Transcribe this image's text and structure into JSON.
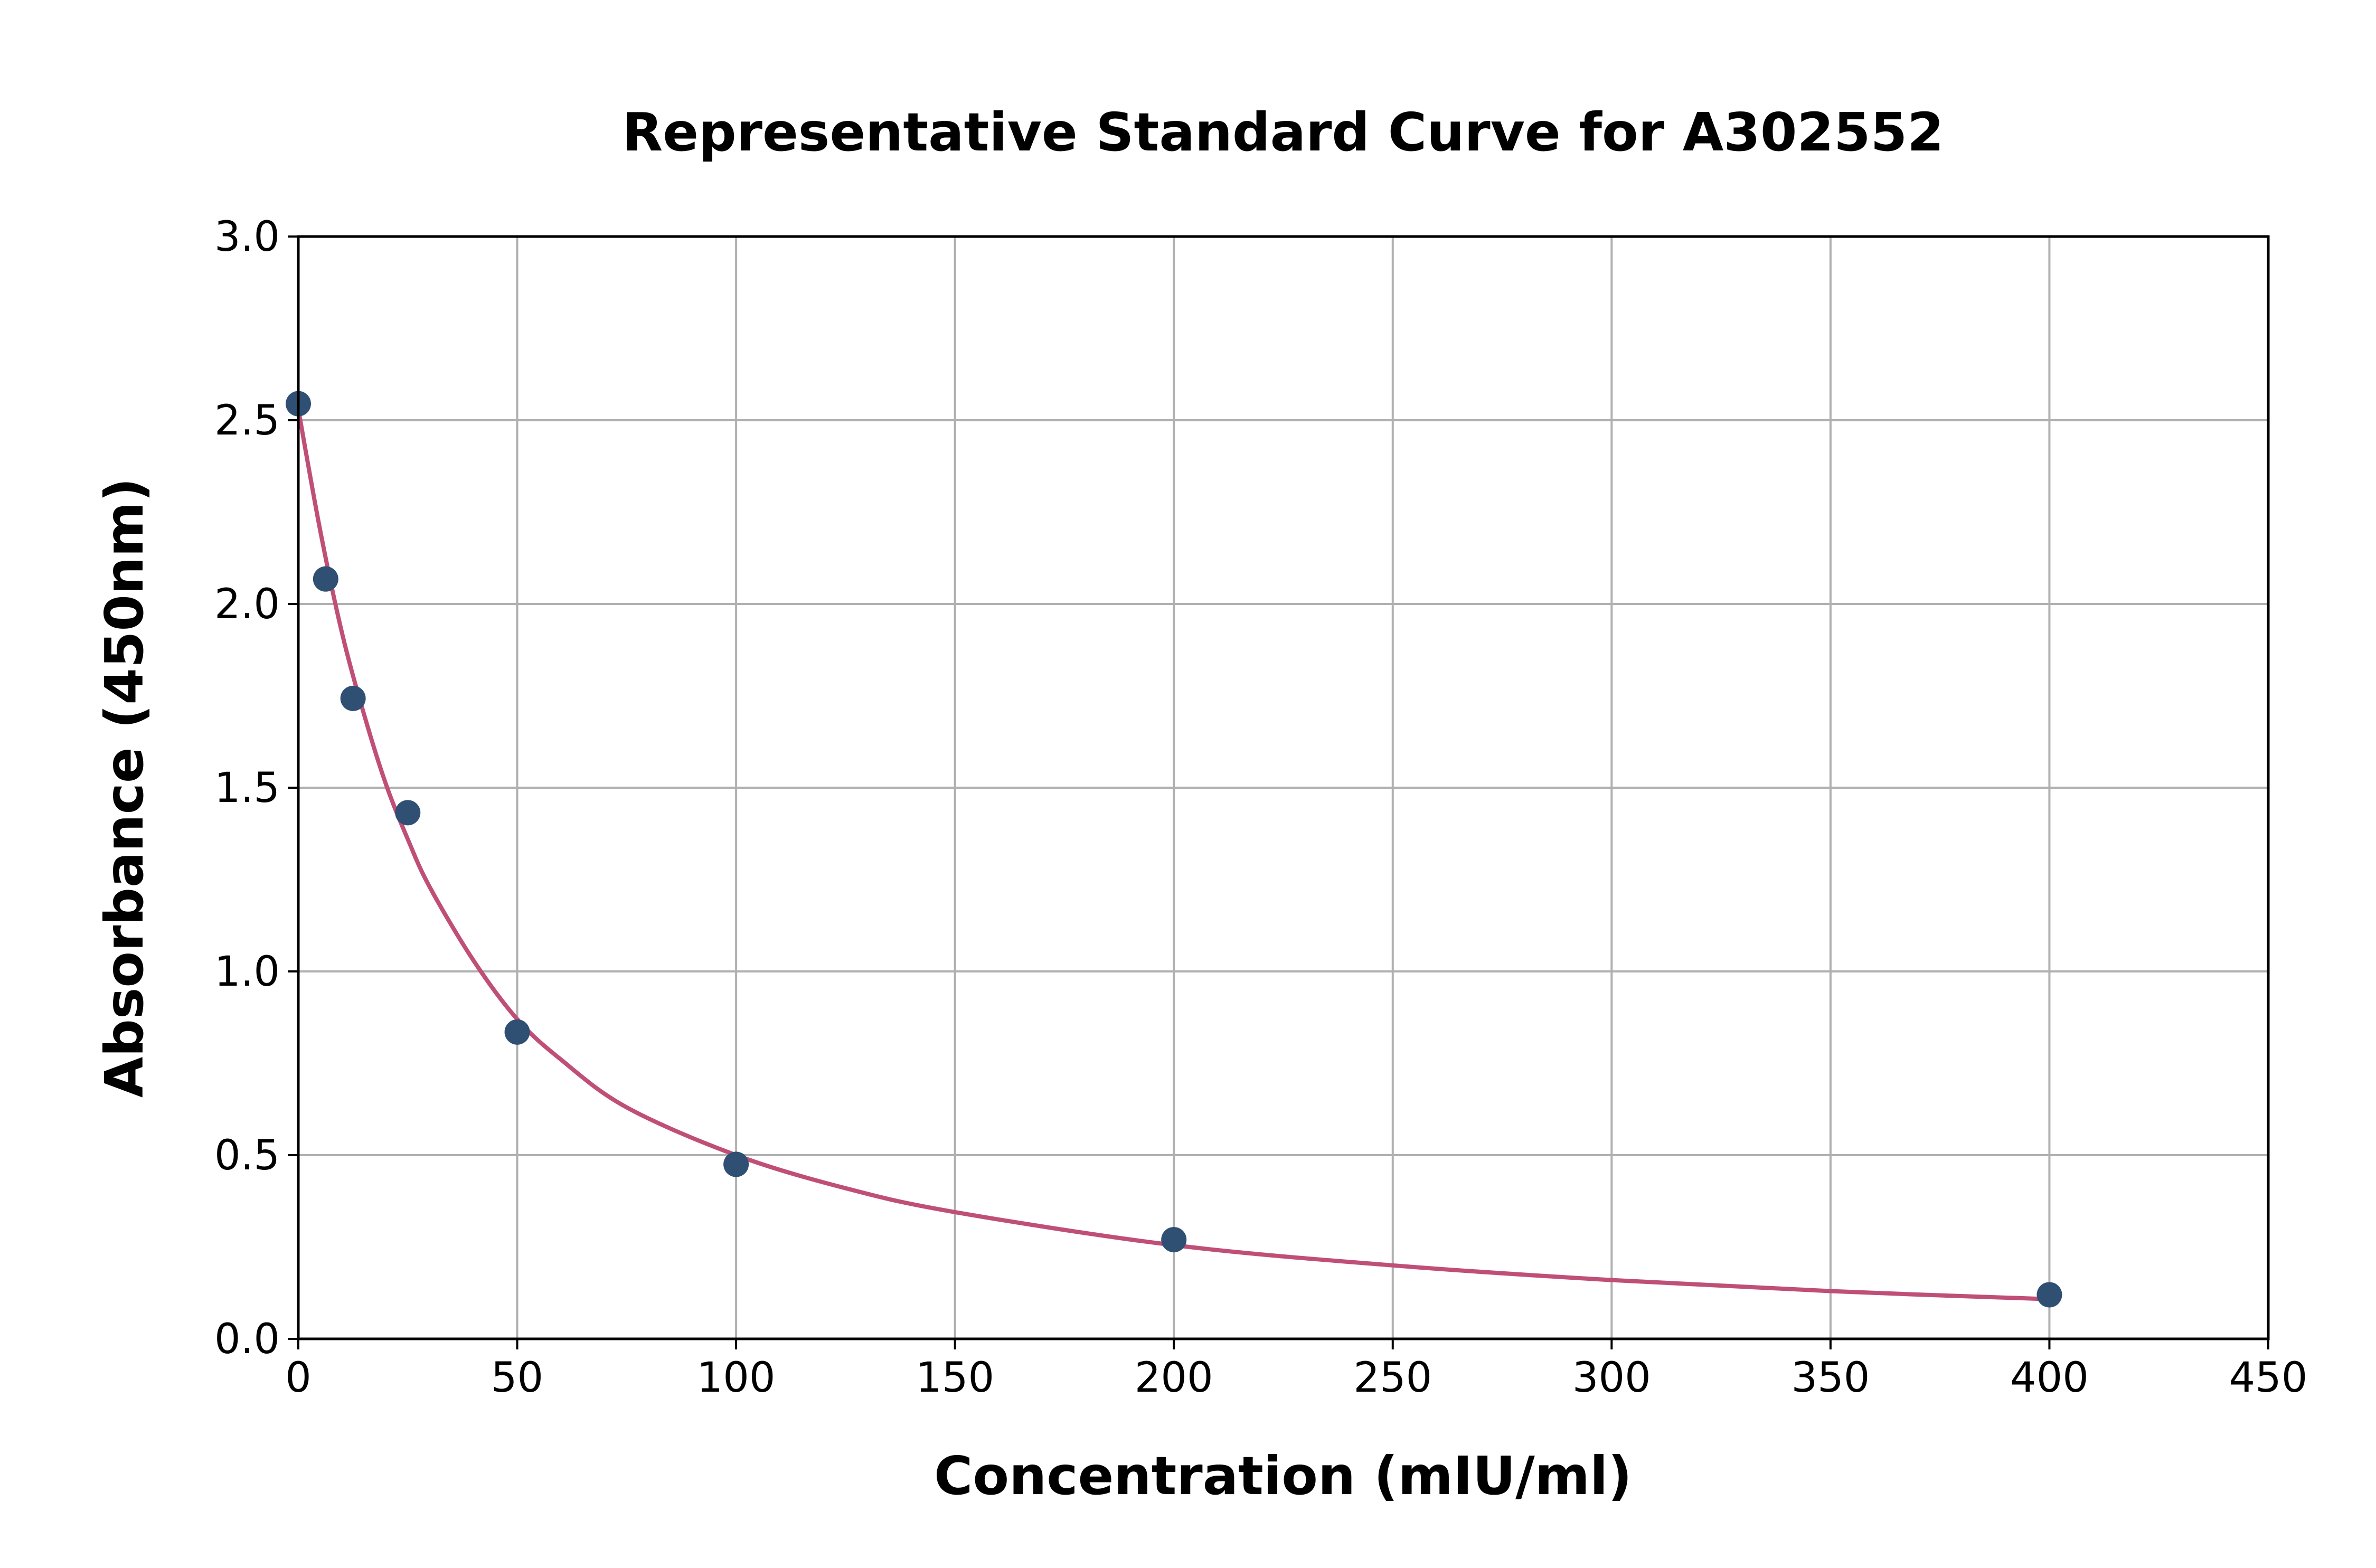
{
  "chart_data": {
    "type": "scatter",
    "title": "Representative Standard Curve for A302552",
    "xlabel": "Concentration (mIU/ml)",
    "ylabel": "Absorbance (450nm)",
    "xlim": [
      0,
      450
    ],
    "ylim": [
      0,
      3.0
    ],
    "xticks": [
      "0",
      "50",
      "100",
      "150",
      "200",
      "250",
      "300",
      "350",
      "400",
      "450"
    ],
    "yticks": [
      "0.0",
      "0.5",
      "1.0",
      "1.5",
      "2.0",
      "2.5",
      "3.0"
    ],
    "grid": true,
    "points": {
      "x": [
        0,
        6.25,
        12.5,
        25,
        50,
        100,
        200,
        400
      ],
      "y": [
        2.545,
        2.068,
        1.743,
        1.432,
        0.835,
        0.475,
        0.27,
        0.12
      ]
    },
    "fit_curve": {
      "x": [
        0,
        5,
        10,
        15,
        20,
        25,
        30,
        40,
        50,
        60,
        75,
        100,
        125,
        150,
        200,
        250,
        300,
        350,
        400
      ],
      "y": [
        2.53,
        2.2,
        1.92,
        1.7,
        1.51,
        1.36,
        1.23,
        1.03,
        0.87,
        0.76,
        0.63,
        0.5,
        0.41,
        0.345,
        0.255,
        0.2,
        0.16,
        0.13,
        0.108
      ]
    },
    "colors": {
      "points": "#2f4f73",
      "curve": "#c04f78",
      "grid": "#b0b0b0"
    }
  }
}
